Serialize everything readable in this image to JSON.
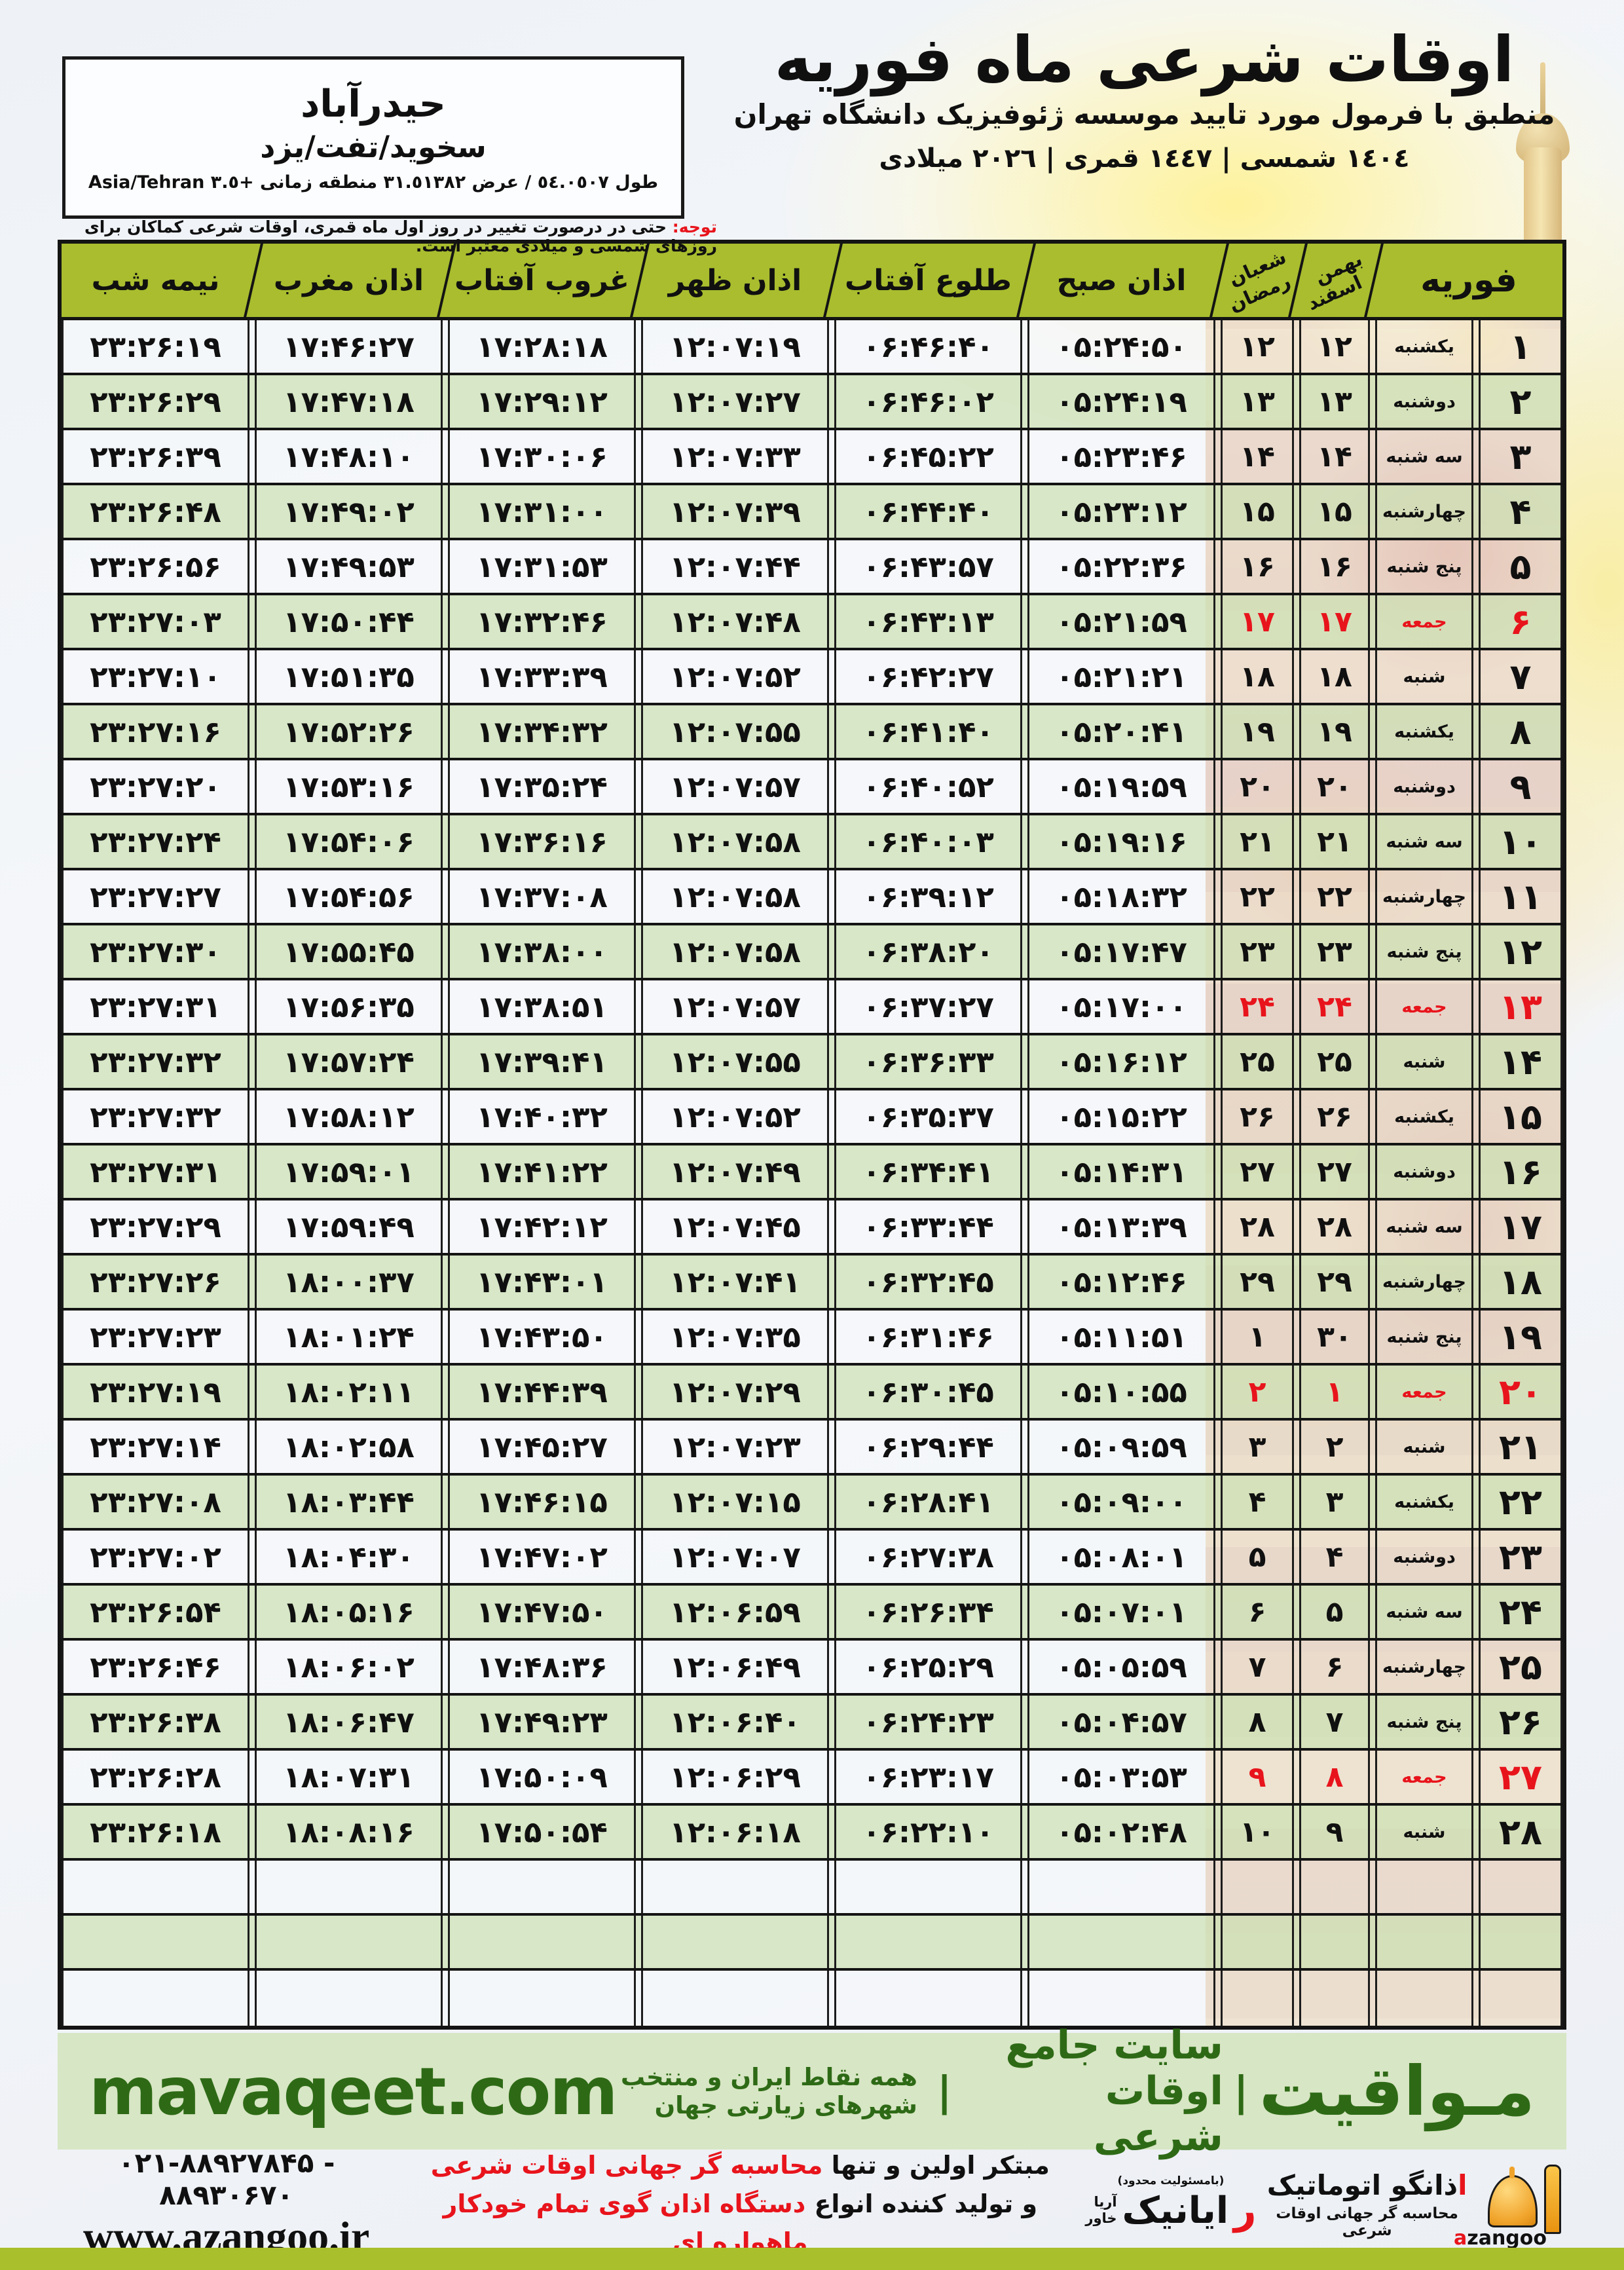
{
  "header": {
    "title": "اوقات شرعی ماه فوریه",
    "subtitle": "منطبق با فرمول مورد تایید موسسه ژئوفیزیک دانشگاه تهران",
    "years": "۱٤۰٤ شمسی | ۱٤٤۷ قمری | ۲۰۲٦ میلادی"
  },
  "location": {
    "city": "حیدرآباد",
    "region": "سخوید/تفت/یزد",
    "coords": "طول ٥٤.٠٥٠۷ / عرض ۳۱.٥۱۳۸۲ منطقه زمانی +۳.٥ Asia/Tehran"
  },
  "notice": {
    "label": "توجه:",
    "text": "حتی در درصورت تغییر در روز اول ماه قمری، اوقات شرعی کماکان برای روزهای شمسی و میلادی معتبر است."
  },
  "table": {
    "headers": {
      "feb": "فوریه",
      "bahman_top": "بهمن",
      "bahman_bottom": "اسفند",
      "shaban_top": "شعبان",
      "shaban_bottom": "رمضان",
      "fajr": "اذان صبح",
      "sunrise": "طلوع آفتاب",
      "dhuhr": "اذان ظهر",
      "sunset": "غروب آفتاب",
      "maghrib": "اذان مغرب",
      "midnight": "نیمه شب"
    },
    "column_keys": [
      "day",
      "weekday",
      "bahman",
      "shaban",
      "fajr",
      "sunrise",
      "dhuhr",
      "sunset",
      "maghrib",
      "midnight"
    ],
    "empty_rows": 3,
    "rows": [
      {
        "day": "۱",
        "weekday": "یکشنبه",
        "bahman": "۱۲",
        "shaban": "۱۲",
        "fajr": "۰۵:۲۴:۵۰",
        "sunrise": "۰۶:۴۶:۴۰",
        "dhuhr": "۱۲:۰۷:۱۹",
        "sunset": "۱۷:۲۸:۱۸",
        "maghrib": "۱۷:۴۶:۲۷",
        "midnight": "۲۳:۲۶:۱۹",
        "friday": false
      },
      {
        "day": "۲",
        "weekday": "دوشنبه",
        "bahman": "۱۳",
        "shaban": "۱۳",
        "fajr": "۰۵:۲۴:۱۹",
        "sunrise": "۰۶:۴۶:۰۲",
        "dhuhr": "۱۲:۰۷:۲۷",
        "sunset": "۱۷:۲۹:۱۲",
        "maghrib": "۱۷:۴۷:۱۸",
        "midnight": "۲۳:۲۶:۲۹",
        "friday": false
      },
      {
        "day": "۳",
        "weekday": "سه شنبه",
        "bahman": "۱۴",
        "shaban": "۱۴",
        "fajr": "۰۵:۲۳:۴۶",
        "sunrise": "۰۶:۴۵:۲۲",
        "dhuhr": "۱۲:۰۷:۳۳",
        "sunset": "۱۷:۳۰:۰۶",
        "maghrib": "۱۷:۴۸:۱۰",
        "midnight": "۲۳:۲۶:۳۹",
        "friday": false
      },
      {
        "day": "۴",
        "weekday": "چهارشنبه",
        "bahman": "۱۵",
        "shaban": "۱۵",
        "fajr": "۰۵:۲۳:۱۲",
        "sunrise": "۰۶:۴۴:۴۰",
        "dhuhr": "۱۲:۰۷:۳۹",
        "sunset": "۱۷:۳۱:۰۰",
        "maghrib": "۱۷:۴۹:۰۲",
        "midnight": "۲۳:۲۶:۴۸",
        "friday": false
      },
      {
        "day": "۵",
        "weekday": "پنج شنبه",
        "bahman": "۱۶",
        "shaban": "۱۶",
        "fajr": "۰۵:۲۲:۳۶",
        "sunrise": "۰۶:۴۳:۵۷",
        "dhuhr": "۱۲:۰۷:۴۴",
        "sunset": "۱۷:۳۱:۵۳",
        "maghrib": "۱۷:۴۹:۵۳",
        "midnight": "۲۳:۲۶:۵۶",
        "friday": false
      },
      {
        "day": "۶",
        "weekday": "جمعه",
        "bahman": "۱۷",
        "shaban": "۱۷",
        "fajr": "۰۵:۲۱:۵۹",
        "sunrise": "۰۶:۴۳:۱۳",
        "dhuhr": "۱۲:۰۷:۴۸",
        "sunset": "۱۷:۳۲:۴۶",
        "maghrib": "۱۷:۵۰:۴۴",
        "midnight": "۲۳:۲۷:۰۳",
        "friday": true
      },
      {
        "day": "۷",
        "weekday": "شنبه",
        "bahman": "۱۸",
        "shaban": "۱۸",
        "fajr": "۰۵:۲۱:۲۱",
        "sunrise": "۰۶:۴۲:۲۷",
        "dhuhr": "۱۲:۰۷:۵۲",
        "sunset": "۱۷:۳۳:۳۹",
        "maghrib": "۱۷:۵۱:۳۵",
        "midnight": "۲۳:۲۷:۱۰",
        "friday": false
      },
      {
        "day": "۸",
        "weekday": "یکشنبه",
        "bahman": "۱۹",
        "shaban": "۱۹",
        "fajr": "۰۵:۲۰:۴۱",
        "sunrise": "۰۶:۴۱:۴۰",
        "dhuhr": "۱۲:۰۷:۵۵",
        "sunset": "۱۷:۳۴:۳۲",
        "maghrib": "۱۷:۵۲:۲۶",
        "midnight": "۲۳:۲۷:۱۶",
        "friday": false
      },
      {
        "day": "۹",
        "weekday": "دوشنبه",
        "bahman": "۲۰",
        "shaban": "۲۰",
        "fajr": "۰۵:۱۹:۵۹",
        "sunrise": "۰۶:۴۰:۵۲",
        "dhuhr": "۱۲:۰۷:۵۷",
        "sunset": "۱۷:۳۵:۲۴",
        "maghrib": "۱۷:۵۳:۱۶",
        "midnight": "۲۳:۲۷:۲۰",
        "friday": false
      },
      {
        "day": "۱۰",
        "weekday": "سه شنبه",
        "bahman": "۲۱",
        "shaban": "۲۱",
        "fajr": "۰۵:۱۹:۱۶",
        "sunrise": "۰۶:۴۰:۰۳",
        "dhuhr": "۱۲:۰۷:۵۸",
        "sunset": "۱۷:۳۶:۱۶",
        "maghrib": "۱۷:۵۴:۰۶",
        "midnight": "۲۳:۲۷:۲۴",
        "friday": false
      },
      {
        "day": "۱۱",
        "weekday": "چهارشنبه",
        "bahman": "۲۲",
        "shaban": "۲۲",
        "fajr": "۰۵:۱۸:۳۲",
        "sunrise": "۰۶:۳۹:۱۲",
        "dhuhr": "۱۲:۰۷:۵۸",
        "sunset": "۱۷:۳۷:۰۸",
        "maghrib": "۱۷:۵۴:۵۶",
        "midnight": "۲۳:۲۷:۲۷",
        "friday": false
      },
      {
        "day": "۱۲",
        "weekday": "پنج شنبه",
        "bahman": "۲۳",
        "shaban": "۲۳",
        "fajr": "۰۵:۱۷:۴۷",
        "sunrise": "۰۶:۳۸:۲۰",
        "dhuhr": "۱۲:۰۷:۵۸",
        "sunset": "۱۷:۳۸:۰۰",
        "maghrib": "۱۷:۵۵:۴۵",
        "midnight": "۲۳:۲۷:۳۰",
        "friday": false
      },
      {
        "day": "۱۳",
        "weekday": "جمعه",
        "bahman": "۲۴",
        "shaban": "۲۴",
        "fajr": "۰۵:۱۷:۰۰",
        "sunrise": "۰۶:۳۷:۲۷",
        "dhuhr": "۱۲:۰۷:۵۷",
        "sunset": "۱۷:۳۸:۵۱",
        "maghrib": "۱۷:۵۶:۳۵",
        "midnight": "۲۳:۲۷:۳۱",
        "friday": true
      },
      {
        "day": "۱۴",
        "weekday": "شنبه",
        "bahman": "۲۵",
        "shaban": "۲۵",
        "fajr": "۰۵:۱۶:۱۲",
        "sunrise": "۰۶:۳۶:۳۳",
        "dhuhr": "۱۲:۰۷:۵۵",
        "sunset": "۱۷:۳۹:۴۱",
        "maghrib": "۱۷:۵۷:۲۴",
        "midnight": "۲۳:۲۷:۳۲",
        "friday": false
      },
      {
        "day": "۱۵",
        "weekday": "یکشنبه",
        "bahman": "۲۶",
        "shaban": "۲۶",
        "fajr": "۰۵:۱۵:۲۲",
        "sunrise": "۰۶:۳۵:۳۷",
        "dhuhr": "۱۲:۰۷:۵۲",
        "sunset": "۱۷:۴۰:۳۲",
        "maghrib": "۱۷:۵۸:۱۲",
        "midnight": "۲۳:۲۷:۳۲",
        "friday": false
      },
      {
        "day": "۱۶",
        "weekday": "دوشنبه",
        "bahman": "۲۷",
        "shaban": "۲۷",
        "fajr": "۰۵:۱۴:۳۱",
        "sunrise": "۰۶:۳۴:۴۱",
        "dhuhr": "۱۲:۰۷:۴۹",
        "sunset": "۱۷:۴۱:۲۲",
        "maghrib": "۱۷:۵۹:۰۱",
        "midnight": "۲۳:۲۷:۳۱",
        "friday": false
      },
      {
        "day": "۱۷",
        "weekday": "سه شنبه",
        "bahman": "۲۸",
        "shaban": "۲۸",
        "fajr": "۰۵:۱۳:۳۹",
        "sunrise": "۰۶:۳۳:۴۴",
        "dhuhr": "۱۲:۰۷:۴۵",
        "sunset": "۱۷:۴۲:۱۲",
        "maghrib": "۱۷:۵۹:۴۹",
        "midnight": "۲۳:۲۷:۲۹",
        "friday": false
      },
      {
        "day": "۱۸",
        "weekday": "چهارشنبه",
        "bahman": "۲۹",
        "shaban": "۲۹",
        "fajr": "۰۵:۱۲:۴۶",
        "sunrise": "۰۶:۳۲:۴۵",
        "dhuhr": "۱۲:۰۷:۴۱",
        "sunset": "۱۷:۴۳:۰۱",
        "maghrib": "۱۸:۰۰:۳۷",
        "midnight": "۲۳:۲۷:۲۶",
        "friday": false
      },
      {
        "day": "۱۹",
        "weekday": "پنج شنبه",
        "bahman": "۳۰",
        "shaban": "۱",
        "fajr": "۰۵:۱۱:۵۱",
        "sunrise": "۰۶:۳۱:۴۶",
        "dhuhr": "۱۲:۰۷:۳۵",
        "sunset": "۱۷:۴۳:۵۰",
        "maghrib": "۱۸:۰۱:۲۴",
        "midnight": "۲۳:۲۷:۲۳",
        "friday": false
      },
      {
        "day": "۲۰",
        "weekday": "جمعه",
        "bahman": "۱",
        "shaban": "۲",
        "fajr": "۰۵:۱۰:۵۵",
        "sunrise": "۰۶:۳۰:۴۵",
        "dhuhr": "۱۲:۰۷:۲۹",
        "sunset": "۱۷:۴۴:۳۹",
        "maghrib": "۱۸:۰۲:۱۱",
        "midnight": "۲۳:۲۷:۱۹",
        "friday": true
      },
      {
        "day": "۲۱",
        "weekday": "شنبه",
        "bahman": "۲",
        "shaban": "۳",
        "fajr": "۰۵:۰۹:۵۹",
        "sunrise": "۰۶:۲۹:۴۴",
        "dhuhr": "۱۲:۰۷:۲۳",
        "sunset": "۱۷:۴۵:۲۷",
        "maghrib": "۱۸:۰۲:۵۸",
        "midnight": "۲۳:۲۷:۱۴",
        "friday": false
      },
      {
        "day": "۲۲",
        "weekday": "یکشنبه",
        "bahman": "۳",
        "shaban": "۴",
        "fajr": "۰۵:۰۹:۰۰",
        "sunrise": "۰۶:۲۸:۴۱",
        "dhuhr": "۱۲:۰۷:۱۵",
        "sunset": "۱۷:۴۶:۱۵",
        "maghrib": "۱۸:۰۳:۴۴",
        "midnight": "۲۳:۲۷:۰۸",
        "friday": false
      },
      {
        "day": "۲۳",
        "weekday": "دوشنبه",
        "bahman": "۴",
        "shaban": "۵",
        "fajr": "۰۵:۰۸:۰۱",
        "sunrise": "۰۶:۲۷:۳۸",
        "dhuhr": "۱۲:۰۷:۰۷",
        "sunset": "۱۷:۴۷:۰۲",
        "maghrib": "۱۸:۰۴:۳۰",
        "midnight": "۲۳:۲۷:۰۲",
        "friday": false
      },
      {
        "day": "۲۴",
        "weekday": "سه شنبه",
        "bahman": "۵",
        "shaban": "۶",
        "fajr": "۰۵:۰۷:۰۱",
        "sunrise": "۰۶:۲۶:۳۴",
        "dhuhr": "۱۲:۰۶:۵۹",
        "sunset": "۱۷:۴۷:۵۰",
        "maghrib": "۱۸:۰۵:۱۶",
        "midnight": "۲۳:۲۶:۵۴",
        "friday": false
      },
      {
        "day": "۲۵",
        "weekday": "چهارشنبه",
        "bahman": "۶",
        "shaban": "۷",
        "fajr": "۰۵:۰۵:۵۹",
        "sunrise": "۰۶:۲۵:۲۹",
        "dhuhr": "۱۲:۰۶:۴۹",
        "sunset": "۱۷:۴۸:۳۶",
        "maghrib": "۱۸:۰۶:۰۲",
        "midnight": "۲۳:۲۶:۴۶",
        "friday": false
      },
      {
        "day": "۲۶",
        "weekday": "پنج شنبه",
        "bahman": "۷",
        "shaban": "۸",
        "fajr": "۰۵:۰۴:۵۷",
        "sunrise": "۰۶:۲۴:۲۳",
        "dhuhr": "۱۲:۰۶:۴۰",
        "sunset": "۱۷:۴۹:۲۳",
        "maghrib": "۱۸:۰۶:۴۷",
        "midnight": "۲۳:۲۶:۳۸",
        "friday": false
      },
      {
        "day": "۲۷",
        "weekday": "جمعه",
        "bahman": "۸",
        "shaban": "۹",
        "fajr": "۰۵:۰۳:۵۳",
        "sunrise": "۰۶:۲۳:۱۷",
        "dhuhr": "۱۲:۰۶:۲۹",
        "sunset": "۱۷:۵۰:۰۹",
        "maghrib": "۱۸:۰۷:۳۱",
        "midnight": "۲۳:۲۶:۲۸",
        "friday": true
      },
      {
        "day": "۲۸",
        "weekday": "شنبه",
        "bahman": "۹",
        "shaban": "۱۰",
        "fajr": "۰۵:۰۲:۴۸",
        "sunrise": "۰۶:۲۲:۱۰",
        "dhuhr": "۱۲:۰۶:۱۸",
        "sunset": "۱۷:۵۰:۵۴",
        "maghrib": "۱۸:۰۸:۱۶",
        "midnight": "۲۳:۲۶:۱۸",
        "friday": false
      }
    ]
  },
  "footer": {
    "brand": "مـواقیت",
    "separator": "|",
    "tagline": "سایت جامع اوقات شرعی",
    "scope": "همه نقاط ایران و منتخب شهرهای زیارتی جهان",
    "site": "mavaqeet.com"
  },
  "bottom": {
    "line1_dark": "مبتکر اولین و تنها",
    "line1_red": "محاسبه گر جهانی اوقات شرعی",
    "line2_dark": "و تولید کننده انواع",
    "line2_red": "دستگاه اذان گوی تمام خودکار ماهواره ای",
    "phone": "۰۲۱-۸۸۹۲۷۸۴۵ - ۸۸۹۳۰۶۷۰",
    "website": "www.azangoo.ir",
    "rayanik_note": "(بامسئولیت محدود)",
    "rayanik_initial": "ر",
    "rayanik_rest": "ایانیک",
    "rayanik_side1": "آریا",
    "rayanik_side2": "خاور",
    "azangoo_initial": "ا",
    "azangoo_rest": "ذانگو اتوماتیک",
    "azangoo_sub": "محاسبه گر جهانی اوقات شرعی",
    "azangoo_latin_a": "a",
    "azangoo_latin_rest": "zangoo"
  },
  "colors": {
    "header_olive": "#a9bd2e",
    "row_green": "#d3e5bf",
    "row_white": "#f5f8fb",
    "friday_red": "#e8141c",
    "footer_band_green": "#d7e6c4",
    "brand_dark_green": "#2e6a16",
    "bottom_bar_olive": "#a9c02c"
  }
}
